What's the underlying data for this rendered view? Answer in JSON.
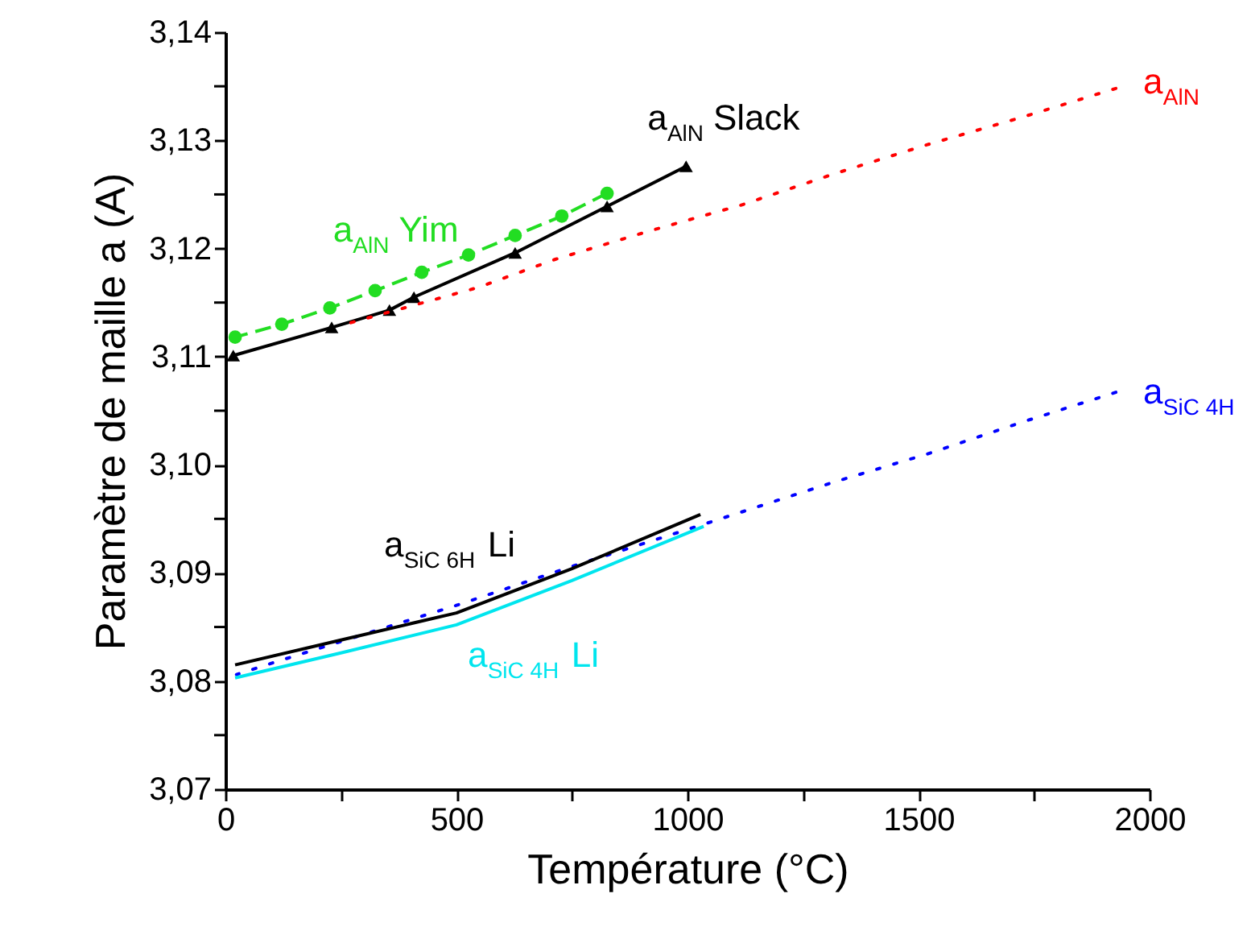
{
  "chart_data": {
    "type": "line",
    "xlabel": "Température (°C)",
    "ylabel": "Paramètre de maille a (A)",
    "xlim": [
      0,
      2000
    ],
    "ylim": [
      3.07,
      3.14
    ],
    "xticks": [
      0,
      {
        "value": 250,
        "label": null
      },
      500,
      {
        "value": 750,
        "label": null
      },
      1000,
      {
        "value": 1250,
        "label": null
      },
      1500,
      {
        "value": 1750,
        "label": null
      },
      2000
    ],
    "yticks": [
      {
        "value": 3.07,
        "label": "3,07"
      },
      {
        "value": 3.075,
        "label": null
      },
      {
        "value": 3.08,
        "label": "3,08"
      },
      {
        "value": 3.085,
        "label": null
      },
      {
        "value": 3.09,
        "label": "3,09"
      },
      {
        "value": 3.095,
        "label": null
      },
      {
        "value": 3.1,
        "label": "3,10"
      },
      {
        "value": 3.105,
        "label": null
      },
      {
        "value": 3.11,
        "label": "3,11"
      },
      {
        "value": 3.115,
        "label": null
      },
      {
        "value": 3.12,
        "label": "3,12"
      },
      {
        "value": 3.125,
        "label": null
      },
      {
        "value": 3.13,
        "label": "3,13"
      },
      {
        "value": 3.135,
        "label": null
      },
      {
        "value": 3.14,
        "label": "3,14"
      }
    ],
    "grid": false,
    "series": [
      {
        "name": "a$_{AlN}$ Slack",
        "color": "#000000",
        "marker": "triangle",
        "line_style": "solid",
        "x": [
          17,
          230,
          355,
          408,
          627,
          826,
          997
        ],
        "values": [
          3.1101,
          3.1127,
          3.1143,
          3.1155,
          3.1196,
          3.1239,
          3.1276
        ]
      },
      {
        "name": "a$_{AlN}$ Yim",
        "color": "#22dd22",
        "marker": "circle",
        "line_style": "dashed",
        "x": [
          21,
          122,
          226,
          324,
          425,
          526,
          627,
          728,
          826
        ],
        "values": [
          3.1118,
          3.113,
          3.1145,
          3.1161,
          3.1178,
          3.1194,
          3.1212,
          3.123,
          3.1251
        ]
      },
      {
        "name": "a$_{AlN}$",
        "color": "#ff0000",
        "marker": "none",
        "line_style": "dotted",
        "x": [
          268,
          547,
          714,
          916,
          1115,
          1317,
          1519,
          1721,
          1927
        ],
        "values": [
          3.1131,
          3.1164,
          3.119,
          3.1216,
          3.124,
          3.1269,
          3.1296,
          3.1321,
          3.1348
        ]
      },
      {
        "name": "a$_{SiC 4H}$",
        "color": "#0000ff",
        "marker": "none",
        "line_style": "dotted",
        "x": [
          24,
          111,
          500,
          750,
          1035,
          1317,
          1519,
          1721,
          1927
        ],
        "values": [
          3.0806,
          3.0818,
          3.087,
          3.0906,
          3.0945,
          3.0984,
          3.101,
          3.1039,
          3.1067
        ]
      },
      {
        "name": "a$_{SiC 6H}$ Li",
        "color": "#000000",
        "marker": "none",
        "line_style": "solid",
        "x": [
          21,
          250,
          500,
          750,
          1028
        ],
        "values": [
          3.0815,
          3.0838,
          3.0863,
          3.0904,
          3.0954
        ]
      },
      {
        "name": "a$_{SiC 4H}$ Li",
        "color": "#00e5ee",
        "marker": "none",
        "line_style": "solid",
        "x": [
          21,
          250,
          500,
          750,
          1035
        ],
        "values": [
          3.0803,
          3.0826,
          3.0852,
          3.0893,
          3.0943
        ]
      }
    ]
  }
}
